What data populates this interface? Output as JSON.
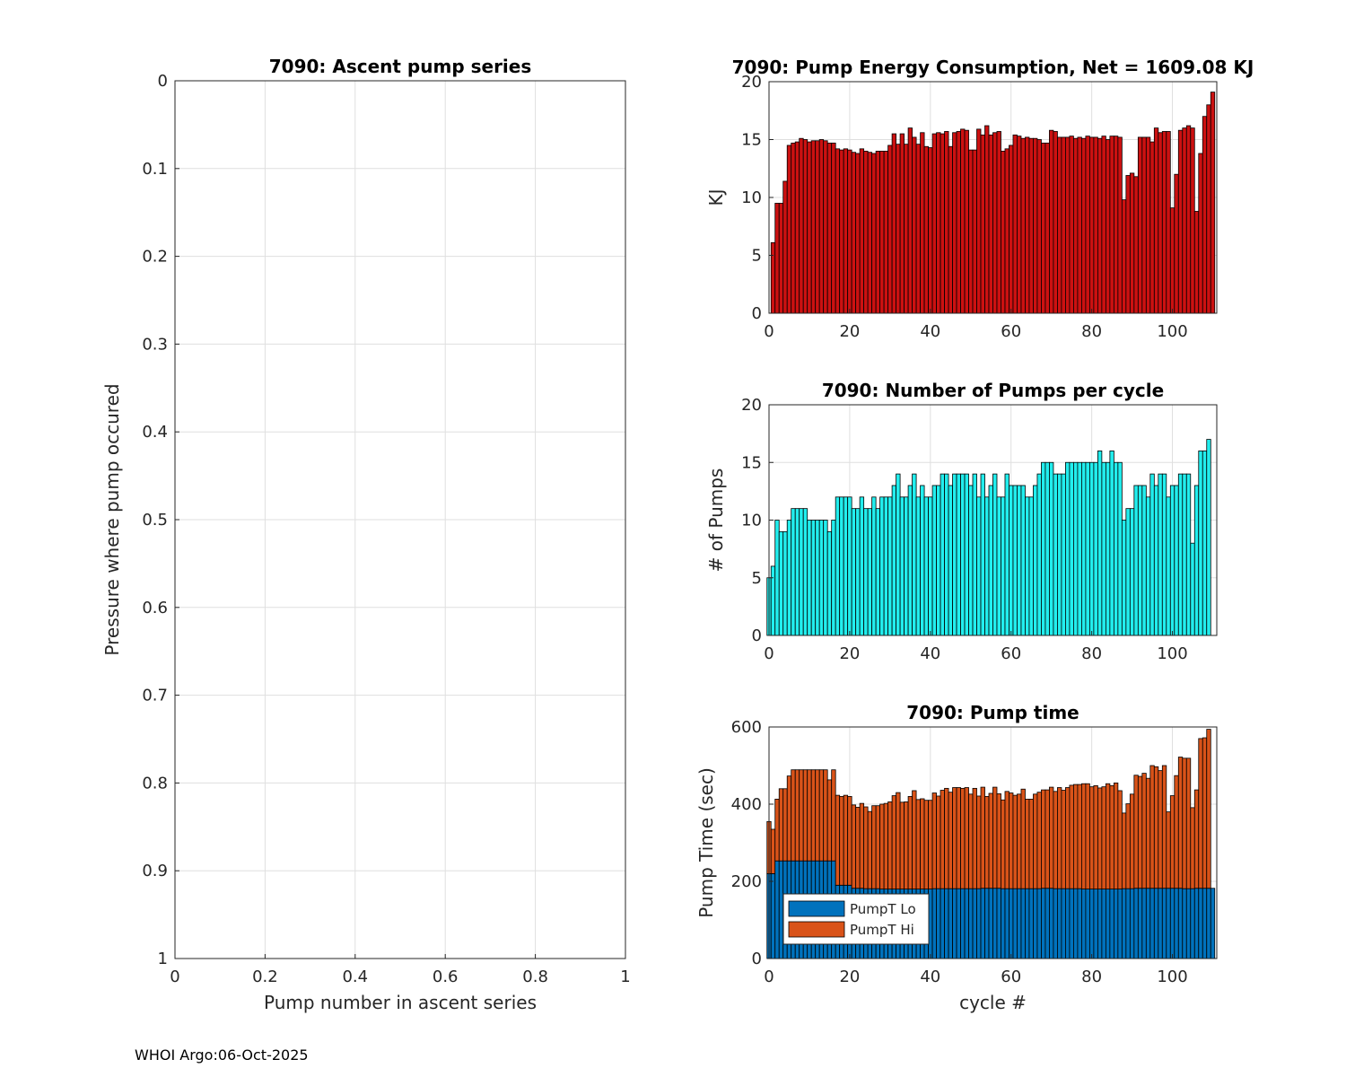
{
  "footer": "WHOI Argo:06-Oct-2025",
  "chart_data": [
    {
      "type": "line",
      "title": "7090: Ascent pump series",
      "xlabel": "Pump number in ascent series",
      "ylabel": "Pressure where pump occured",
      "xlim": [
        0,
        1
      ],
      "ylim": [
        0,
        1
      ],
      "y_reversed": true,
      "xticks": [
        "0",
        "0.2",
        "0.4",
        "0.6",
        "0.8",
        "1"
      ],
      "yticks": [
        "0",
        "0.1",
        "0.2",
        "0.3",
        "0.4",
        "0.5",
        "0.6",
        "0.7",
        "0.8",
        "0.9",
        "1"
      ],
      "grid": true,
      "series": []
    },
    {
      "type": "bar",
      "title": "7090: Pump Energy Consumption,  Net = 1609.08 KJ",
      "xlabel": "",
      "ylabel": "KJ",
      "xlim": [
        0,
        111
      ],
      "ylim": [
        0,
        20
      ],
      "xticks": [
        "0",
        "20",
        "40",
        "60",
        "80",
        "100"
      ],
      "yticks": [
        "0",
        "5",
        "10",
        "15",
        "20"
      ],
      "color": "#cc1111",
      "grid": true,
      "x_start": 1,
      "values": [
        6.1,
        9.5,
        9.5,
        11.4,
        14.5,
        14.7,
        14.8,
        15.1,
        15.0,
        14.8,
        14.9,
        14.9,
        15.0,
        14.9,
        14.7,
        14.7,
        14.2,
        14.1,
        14.2,
        14.1,
        13.9,
        13.8,
        14.2,
        14.0,
        13.9,
        13.8,
        14.0,
        14.0,
        14.0,
        14.5,
        15.5,
        14.6,
        15.5,
        14.6,
        16.0,
        15.2,
        14.6,
        15.6,
        14.4,
        14.3,
        15.5,
        15.6,
        15.5,
        15.7,
        14.4,
        15.6,
        15.7,
        15.9,
        15.8,
        14.1,
        14.1,
        15.9,
        15.4,
        16.2,
        15.4,
        15.6,
        15.7,
        14.0,
        14.2,
        14.5,
        15.4,
        15.3,
        15.1,
        15.2,
        15.1,
        15.1,
        15.0,
        14.7,
        14.7,
        15.8,
        15.7,
        15.2,
        15.2,
        15.2,
        15.3,
        15.1,
        15.2,
        15.1,
        15.3,
        15.2,
        15.2,
        15.1,
        15.3,
        15.0,
        15.3,
        15.3,
        15.2,
        9.8,
        11.9,
        12.1,
        11.8,
        15.2,
        15.2,
        15.2,
        14.8,
        16.0,
        15.6,
        15.7,
        15.7,
        9.1,
        12.0,
        15.8,
        16.0,
        16.2,
        16.0,
        8.8,
        13.8,
        17.0,
        18.0,
        19.1
      ]
    },
    {
      "type": "bar",
      "title": "7090: Number of Pumps per cycle",
      "xlabel": "",
      "ylabel": "# of Pumps",
      "xlim": [
        0,
        111
      ],
      "ylim": [
        0,
        20
      ],
      "xticks": [
        "0",
        "20",
        "40",
        "60",
        "80",
        "100"
      ],
      "yticks": [
        "0",
        "5",
        "10",
        "15",
        "20"
      ],
      "color": "#22eeee",
      "grid": true,
      "x_start": 0,
      "values": [
        5,
        6,
        10,
        9,
        9,
        10,
        11,
        11,
        11,
        11,
        10,
        10,
        10,
        10,
        10,
        9,
        10,
        12,
        12,
        12,
        12,
        11,
        11,
        12,
        11,
        11,
        12,
        11,
        12,
        12,
        12,
        13,
        14,
        12,
        12,
        13,
        14,
        12,
        13,
        12,
        12,
        13,
        13,
        14,
        14,
        13,
        14,
        14,
        14,
        14,
        13,
        14,
        12,
        14,
        12,
        13,
        14,
        12,
        12,
        14,
        13,
        13,
        13,
        13,
        12,
        12,
        13,
        14,
        15,
        15,
        15,
        14,
        14,
        14,
        15,
        15,
        15,
        15,
        15,
        15,
        15,
        15,
        16,
        15,
        15,
        16,
        15,
        15,
        10,
        11,
        11,
        13,
        13,
        13,
        12,
        14,
        13,
        14,
        14,
        12,
        13,
        13,
        14,
        14,
        14,
        8,
        13,
        16,
        16,
        17
      ]
    },
    {
      "type": "bar",
      "stacked": true,
      "title": "7090: Pump time",
      "xlabel": "cycle #",
      "ylabel": "Pump Time (sec)",
      "xlim": [
        0,
        111
      ],
      "ylim": [
        0,
        600
      ],
      "xticks": [
        "0",
        "20",
        "40",
        "60",
        "80",
        "100"
      ],
      "yticks": [
        "0",
        "200",
        "400",
        "600"
      ],
      "grid": true,
      "x_start": 0,
      "legend": "bottom-left",
      "series": [
        {
          "name": "PumpT Lo",
          "color": "#0072bd",
          "values": [
            220,
            220,
            253,
            253,
            253,
            253,
            253,
            253,
            253,
            253,
            253,
            253,
            253,
            253,
            253,
            253,
            253,
            190,
            190,
            190,
            190,
            182,
            182,
            182,
            181,
            181,
            181,
            181,
            180,
            180,
            180,
            180,
            180,
            180,
            180,
            180,
            180,
            180,
            180,
            180,
            180,
            181,
            181,
            181,
            181,
            181,
            181,
            181,
            181,
            181,
            181,
            181,
            181,
            182,
            182,
            182,
            182,
            182,
            181,
            181,
            181,
            181,
            181,
            181,
            181,
            181,
            181,
            181,
            182,
            182,
            182,
            181,
            181,
            181,
            181,
            181,
            181,
            181,
            180,
            180,
            180,
            180,
            180,
            180,
            180,
            180,
            180,
            180,
            181,
            181,
            181,
            182,
            182,
            182,
            182,
            182,
            182,
            182,
            182,
            182,
            182,
            182,
            182,
            181,
            181,
            181,
            182,
            182,
            182,
            182,
            182
          ]
        },
        {
          "name": "PumpT Hi",
          "color": "#d95319",
          "values": [
            135,
            115,
            160,
            187,
            187,
            220,
            236,
            236,
            236,
            236,
            236,
            236,
            236,
            236,
            236,
            210,
            236,
            233,
            230,
            233,
            230,
            216,
            210,
            220,
            212,
            200,
            215,
            215,
            220,
            222,
            226,
            242,
            250,
            225,
            226,
            240,
            255,
            232,
            234,
            230,
            230,
            248,
            240,
            255,
            260,
            250,
            262,
            262,
            260,
            262,
            245,
            260,
            240,
            262,
            238,
            246,
            262,
            245,
            230,
            252,
            248,
            242,
            245,
            258,
            232,
            232,
            245,
            250,
            255,
            255,
            262,
            252,
            262,
            255,
            262,
            268,
            270,
            270,
            273,
            273,
            265,
            268,
            262,
            265,
            273,
            268,
            275,
            255,
            196,
            220,
            245,
            293,
            290,
            298,
            285,
            318,
            315,
            305,
            318,
            198,
            240,
            292,
            340,
            338,
            338,
            210,
            255,
            388,
            390,
            412
          ]
        }
      ]
    }
  ]
}
